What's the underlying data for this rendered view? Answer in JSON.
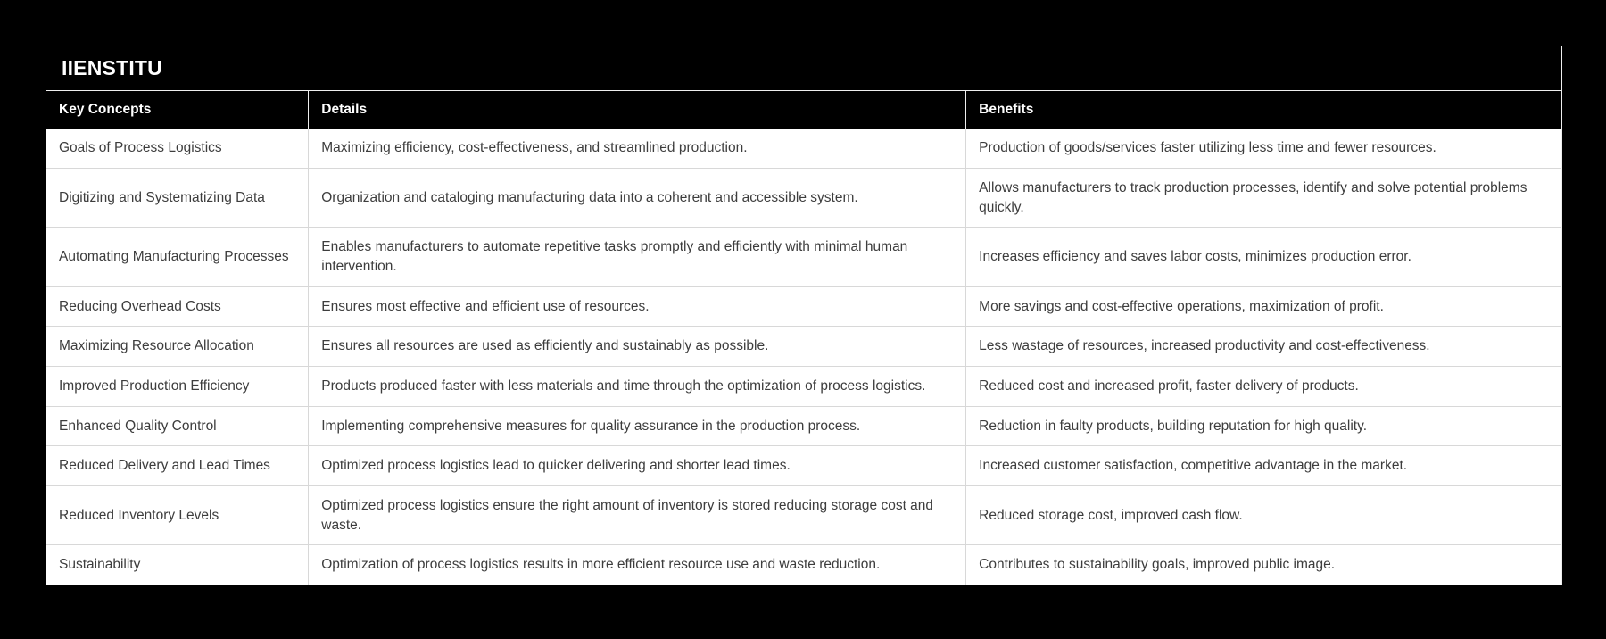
{
  "page": {
    "background": "#000000"
  },
  "card": {
    "title": "IIENSTITU"
  },
  "colors": {
    "header_bg": "#000000",
    "header_text": "#ffffff",
    "row_bg": "#ffffff",
    "body_text": "#3d3d3d",
    "divider": "#d8d8d8",
    "card_border": "#eeeeee",
    "page_bg": "#000000"
  },
  "table": {
    "columns": [
      {
        "label": "Key Concepts"
      },
      {
        "label": "Details"
      },
      {
        "label": "Benefits"
      }
    ],
    "rows": [
      {
        "concept": "Goals of Process Logistics",
        "details": "Maximizing efficiency, cost-effectiveness, and streamlined production.",
        "benefits": "Production of goods/services faster utilizing less time and fewer resources."
      },
      {
        "concept": "Digitizing and Systematizing Data",
        "details": "Organization and cataloging manufacturing data into a coherent and accessible system.",
        "benefits": "Allows manufacturers to track production processes, identify and solve potential problems quickly."
      },
      {
        "concept": "Automating Manufacturing Processes",
        "details": "Enables manufacturers to automate repetitive tasks promptly and efficiently with minimal human intervention.",
        "benefits": "Increases efficiency and saves labor costs, minimizes production error."
      },
      {
        "concept": "Reducing Overhead Costs",
        "details": "Ensures most effective and efficient use of resources.",
        "benefits": "More savings and cost-effective operations, maximization of profit."
      },
      {
        "concept": "Maximizing Resource Allocation",
        "details": "Ensures all resources are used as efficiently and sustainably as possible.",
        "benefits": "Less wastage of resources, increased productivity and cost-effectiveness."
      },
      {
        "concept": "Improved Production Efficiency",
        "details": "Products produced faster with less materials and time through the optimization of process logistics.",
        "benefits": "Reduced cost and increased profit, faster delivery of products."
      },
      {
        "concept": "Enhanced Quality Control",
        "details": "Implementing comprehensive measures for quality assurance in the production process.",
        "benefits": "Reduction in faulty products, building reputation for high quality."
      },
      {
        "concept": "Reduced Delivery and Lead Times",
        "details": "Optimized process logistics lead to quicker delivering and shorter lead times.",
        "benefits": "Increased customer satisfaction, competitive advantage in the market."
      },
      {
        "concept": "Reduced Inventory Levels",
        "details": "Optimized process logistics ensure the right amount of inventory is stored reducing storage cost and waste.",
        "benefits": "Reduced storage cost, improved cash flow."
      },
      {
        "concept": "Sustainability",
        "details": "Optimization of process logistics results in more efficient resource use and waste reduction.",
        "benefits": "Contributes to sustainability goals, improved public image."
      }
    ]
  }
}
